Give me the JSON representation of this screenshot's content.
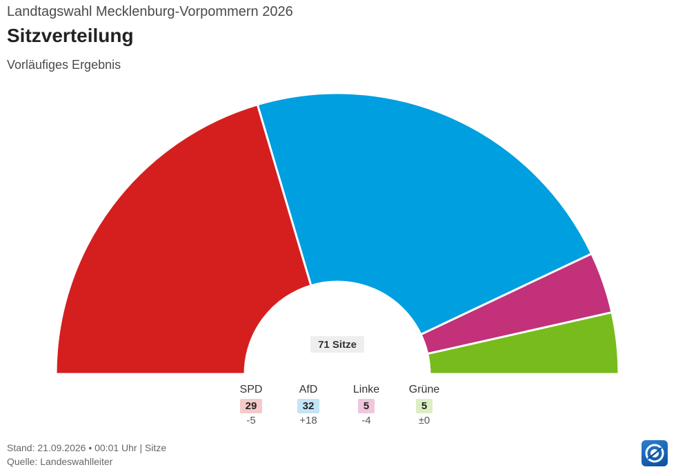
{
  "header": {
    "supertitle": "Landtagswahl Mecklenburg-Vorpommern 2026",
    "title": "Sitzverteilung",
    "subtitle": "Vorläufiges Ergebnis"
  },
  "chart_data": {
    "type": "pie",
    "subtype": "half-donut (parliament seat distribution)",
    "title": "Sitzverteilung",
    "total_label": "71 Sitze",
    "total_seats": 71,
    "categories": [
      "SPD",
      "AfD",
      "Linke",
      "Grüne"
    ],
    "values": [
      29,
      32,
      5,
      5
    ],
    "changes": [
      "-5",
      "+18",
      "-4",
      "±0"
    ],
    "colors": [
      "#d51f1f",
      "#009fe0",
      "#c2317a",
      "#78bb1c"
    ],
    "badge_colors": [
      "#f5caca",
      "#c3e5f7",
      "#f0c6dc",
      "#dcefc4"
    ],
    "legend_placement": "bottom"
  },
  "footer": {
    "stand": "Stand: 21.09.2026 • 00:01 Uhr | Sitze",
    "quelle": "Quelle: Landeswahlleiter"
  },
  "logo": {
    "icon": "broadcaster-logo-icon"
  }
}
